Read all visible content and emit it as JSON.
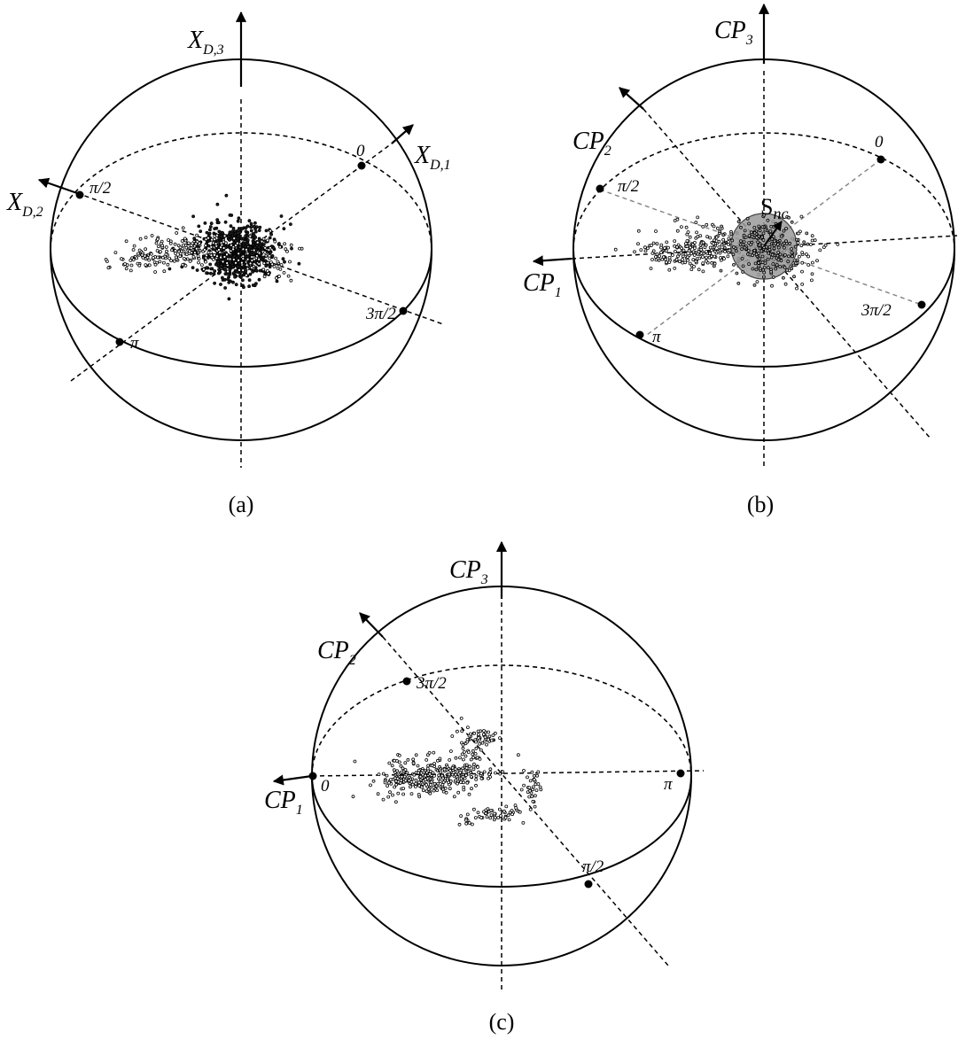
{
  "panel_a": {
    "caption": "(a)",
    "axis_3": {
      "base": "X",
      "sub": "D,3"
    },
    "axis_1": {
      "base": "X",
      "sub": "D,1"
    },
    "axis_2": {
      "base": "X",
      "sub": "D,2"
    },
    "phase_0": "0",
    "phase_pi_2": "π/2",
    "phase_pi": "π",
    "phase_3pi_2": "3π/2"
  },
  "panel_b": {
    "caption": "(b)",
    "axis_3": {
      "base": "CP",
      "sub": "3"
    },
    "axis_2": {
      "base": "CP",
      "sub": "2"
    },
    "axis_1": {
      "base": "CP",
      "sub": "1"
    },
    "phase_0": "0",
    "phase_pi_2": "π/2",
    "phase_pi": "π",
    "phase_3pi_2": "3π/2",
    "sphere_label": {
      "base": "S",
      "sub": "nc"
    }
  },
  "panel_c": {
    "caption": "(c)",
    "axis_3": {
      "base": "CP",
      "sub": "3"
    },
    "axis_2": {
      "base": "CP",
      "sub": "2"
    },
    "axis_1": {
      "base": "CP",
      "sub": "1"
    },
    "phase_0": "0",
    "phase_3pi_2": "3π/2",
    "phase_pi": "π",
    "phase_pi_2": "π/2"
  },
  "colors": {
    "stroke": "#000000",
    "guide_gray": "#888888",
    "sphere_fill": "#9a9a9a"
  }
}
